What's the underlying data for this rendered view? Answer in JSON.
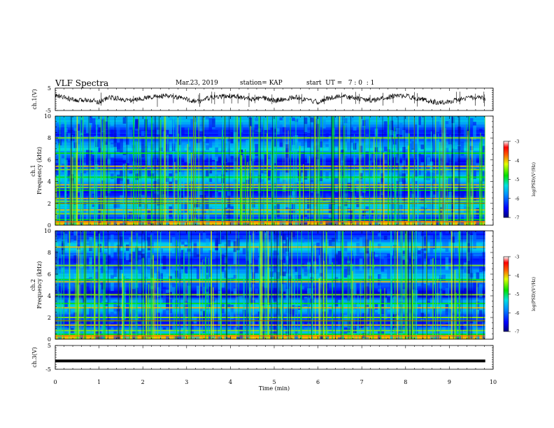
{
  "header": {
    "title": "VLF Spectra",
    "date": "Mar.23, 2019",
    "station": "station= KAP",
    "start": "start  UT =   7 : 0  : 1"
  },
  "chart_data": [
    {
      "type": "line",
      "name": "ch1-waveform",
      "ylabel": "ch.1(V)",
      "ylim": [
        -5,
        5
      ],
      "yticks": [
        -5,
        5
      ],
      "x": [
        0,
        0.25,
        0.5,
        0.75,
        1,
        1.25,
        1.5,
        1.75,
        2,
        2.25,
        2.5,
        2.75,
        3,
        3.25,
        3.5,
        3.75,
        4,
        4.25,
        4.5,
        4.75,
        5,
        5.25,
        5.5,
        5.75,
        6,
        6.25,
        6.5,
        6.75,
        7,
        7.25,
        7.5,
        7.75,
        8,
        8.25,
        8.5,
        8.75,
        9,
        9.25,
        9.5,
        9.75,
        9.82
      ],
      "values": [
        1.8,
        0.5,
        -0.8,
        0,
        -1.2,
        1,
        0,
        -0.5,
        0.5,
        1.2,
        1.5,
        1,
        0,
        -1,
        0.5,
        1.2,
        1.5,
        0.8,
        0,
        0.5,
        -0.5,
        0,
        1,
        -0.5,
        -1.2,
        0.5,
        1.5,
        0.8,
        0,
        -0.5,
        0.5,
        1.5,
        1.5,
        0.5,
        -0.5,
        -1.5,
        -1,
        0,
        0.8,
        0.5,
        0
      ]
    },
    {
      "type": "heatmap",
      "name": "ch1-spectrogram",
      "title": "ch.1",
      "ylabel": "Frequency (kHz)",
      "ylim": [
        0,
        10
      ],
      "yticks": [
        0,
        2,
        4,
        6,
        8,
        10
      ],
      "colorbar": {
        "label": "log(PSD)(V²/Hz)",
        "range": [
          -7,
          -3
        ],
        "ticks": [
          -7,
          -6,
          -5,
          -4,
          -3
        ]
      },
      "bands_khz": [
        0.5,
        1.05,
        1.4,
        2.0,
        2.2,
        2.45,
        3.2,
        3.45,
        3.7,
        4.4,
        5.1,
        5.4,
        6.6,
        8.0
      ]
    },
    {
      "type": "heatmap",
      "name": "ch2-spectrogram",
      "title": "ch.2",
      "ylabel": "Frequency (kHz)",
      "ylim": [
        0,
        10
      ],
      "yticks": [
        0,
        2,
        4,
        6,
        8,
        10
      ],
      "colorbar": {
        "label": "log(PSD)(V²/Hz)",
        "range": [
          -7,
          -3
        ],
        "ticks": [
          -7,
          -6,
          -5,
          -4,
          -3
        ]
      },
      "bands_khz": [
        0.45,
        0.8,
        1.3,
        1.7,
        2.0,
        2.9,
        3.3,
        4.1,
        5.3,
        5.5,
        6.8,
        8.5
      ]
    },
    {
      "type": "line",
      "name": "ch3-waveform",
      "ylabel": "ch.3(V)",
      "ylim": [
        -5,
        5
      ],
      "yticks": [
        -5,
        5
      ],
      "x": [
        0,
        9.82
      ],
      "values": [
        -1.5,
        -1.5
      ]
    }
  ],
  "xaxis": {
    "label": "Time  (min)",
    "range": [
      0,
      10
    ],
    "ticks": [
      "0",
      "1",
      "2",
      "3",
      "4",
      "5",
      "6",
      "7",
      "8",
      "9",
      "10"
    ]
  }
}
